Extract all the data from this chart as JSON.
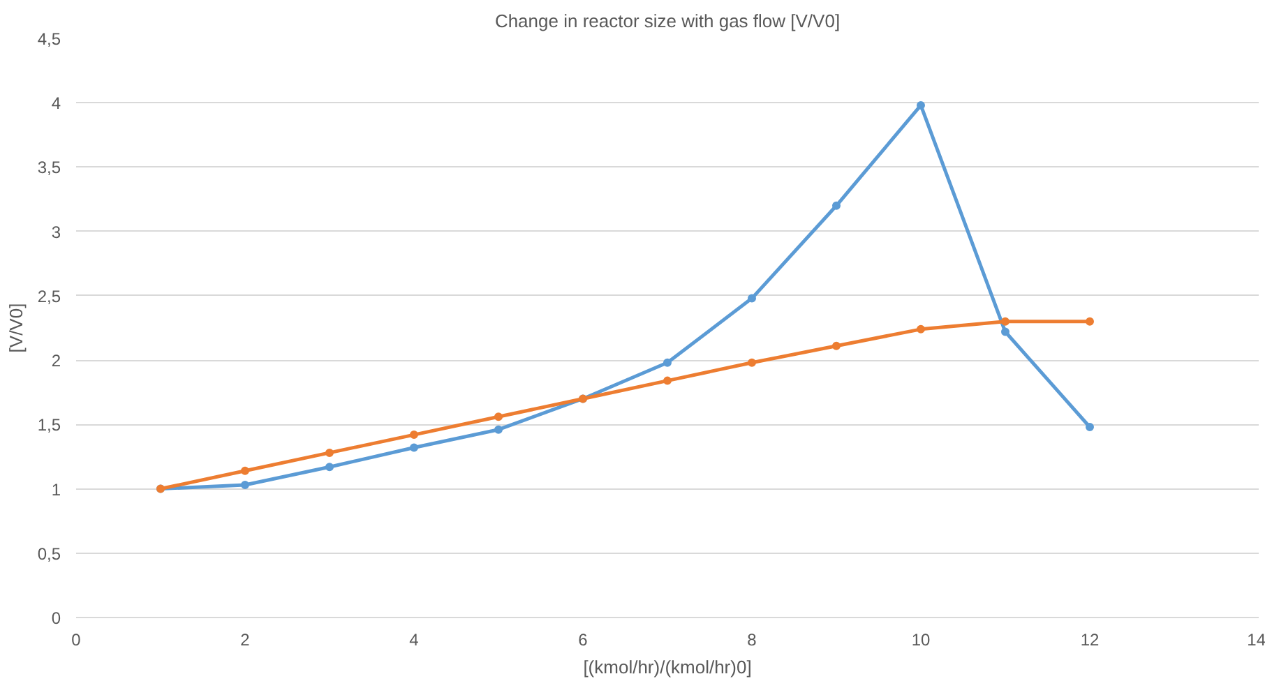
{
  "chart_data": {
    "type": "line",
    "title": "Change in reactor size with gas flow [V/V0]",
    "xlabel": "[(kmol/hr)/(kmol/hr)0]",
    "ylabel": "[V/V0]",
    "x": [
      1,
      2,
      3,
      4,
      5,
      6,
      7,
      8,
      9,
      10,
      11,
      12
    ],
    "series": [
      {
        "color": "#5b9bd5",
        "values": [
          1.0,
          1.03,
          1.17,
          1.32,
          1.46,
          1.7,
          1.98,
          2.48,
          3.2,
          3.98,
          2.22,
          1.48
        ]
      },
      {
        "color": "#ed7d31",
        "values": [
          1.0,
          1.14,
          1.28,
          1.42,
          1.56,
          1.7,
          1.84,
          1.98,
          2.11,
          2.24,
          2.3,
          2.3
        ]
      }
    ],
    "xlim": [
      0,
      14
    ],
    "xticks": [
      0,
      2,
      4,
      6,
      8,
      10,
      12,
      14
    ],
    "ylim": [
      0,
      4.5
    ],
    "yticks": [
      0,
      {
        "value": 0.5,
        "label": "0,5"
      },
      1,
      {
        "value": 1.5,
        "label": "1,5"
      },
      2,
      {
        "value": 2.5,
        "label": "2,5"
      },
      3,
      {
        "value": 3.5,
        "label": "3,5"
      },
      4,
      {
        "value": 4.5,
        "label": "4,5"
      }
    ],
    "grid": "y",
    "marker": "circle",
    "line_style": "solid"
  }
}
